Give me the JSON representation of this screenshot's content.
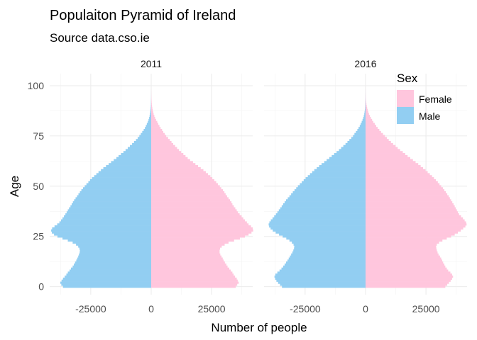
{
  "chart_data": {
    "type": "bar",
    "orientation": "horizontal-pyramid",
    "title": "Populaiton Pyramid of Ireland",
    "subtitle": "Source data.cso.ie",
    "xlabel": "Number of people",
    "ylabel": "Age",
    "xlim": [
      -42000,
      42000
    ],
    "ylim": [
      0,
      100
    ],
    "x_ticks": [
      -25000,
      0,
      25000
    ],
    "x_tick_labels": [
      "-25000",
      "0",
      "25000"
    ],
    "y_ticks": [
      0,
      25,
      50,
      75,
      100
    ],
    "y_tick_labels": [
      "0",
      "25",
      "50",
      "75",
      "100"
    ],
    "grid": true,
    "legend": {
      "title": "Sex",
      "position": "top-right",
      "entries": [
        {
          "label": "Female",
          "color": "#ffc6dd"
        },
        {
          "label": "Male",
          "color": "#92cef2"
        }
      ]
    },
    "colors": {
      "Female": "#ffc6dd",
      "Male": "#92cef2"
    },
    "age_ages": [
      0,
      1,
      2,
      3,
      4,
      5,
      6,
      7,
      8,
      9,
      10,
      11,
      12,
      13,
      14,
      15,
      16,
      17,
      18,
      19,
      20,
      21,
      22,
      23,
      24,
      25,
      26,
      27,
      28,
      29,
      30,
      31,
      32,
      33,
      34,
      35,
      36,
      37,
      38,
      39,
      40,
      41,
      42,
      43,
      44,
      45,
      46,
      47,
      48,
      49,
      50,
      51,
      52,
      53,
      54,
      55,
      56,
      57,
      58,
      59,
      60,
      61,
      62,
      63,
      64,
      65,
      66,
      67,
      68,
      69,
      70,
      71,
      72,
      73,
      74,
      75,
      76,
      77,
      78,
      79,
      80,
      81,
      82,
      83,
      84,
      85,
      86,
      87,
      88,
      89,
      90,
      91,
      92,
      93,
      94,
      95,
      96,
      97,
      98,
      99,
      100
    ],
    "panels": [
      {
        "label": "2011",
        "series": [
          {
            "name": "Female",
            "values": [
              35000,
              35600,
              36200,
              35800,
              35400,
              34700,
              34100,
              33600,
              32900,
              32300,
              31600,
              31100,
              30500,
              30000,
              29600,
              29100,
              28600,
              28300,
              28300,
              28500,
              29200,
              30400,
              32000,
              34300,
              36700,
              38800,
              40300,
              41500,
              42200,
              42000,
              41300,
              40300,
              39600,
              38800,
              38100,
              37400,
              36600,
              35900,
              35400,
              34800,
              34200,
              33600,
              33200,
              32600,
              32000,
              31400,
              30800,
              30300,
              29700,
              29000,
              28400,
              27600,
              26900,
              26100,
              25300,
              24500,
              23500,
              22600,
              21600,
              20500,
              19400,
              18300,
              17300,
              16100,
              15100,
              14200,
              13300,
              12400,
              11500,
              10700,
              9900,
              9100,
              8400,
              7700,
              7000,
              6200,
              5600,
              5000,
              4500,
              3900,
              3400,
              2900,
              2500,
              2000,
              1600,
              1300,
              1000,
              800,
              600,
              450,
              340,
              250,
              180,
              130,
              90,
              60,
              40,
              25,
              15,
              8,
              4
            ]
          },
          {
            "name": "Male",
            "values": [
              -36500,
              -37200,
              -37600,
              -37100,
              -36500,
              -35800,
              -35100,
              -34500,
              -33800,
              -33200,
              -32500,
              -32000,
              -31500,
              -31000,
              -30600,
              -30200,
              -29900,
              -29600,
              -29500,
              -29700,
              -30200,
              -31100,
              -32500,
              -34500,
              -36700,
              -38800,
              -40200,
              -41100,
              -41400,
              -41000,
              -40000,
              -38900,
              -38000,
              -37300,
              -36700,
              -36100,
              -35500,
              -35000,
              -34500,
              -34000,
              -33400,
              -32900,
              -32400,
              -31900,
              -31300,
              -30700,
              -30100,
              -29500,
              -28900,
              -28200,
              -27500,
              -26800,
              -26000,
              -25300,
              -24500,
              -23600,
              -22700,
              -21800,
              -20800,
              -19800,
              -18700,
              -17600,
              -16600,
              -15500,
              -14400,
              -13500,
              -12500,
              -11500,
              -10600,
              -9700,
              -8800,
              -7900,
              -7100,
              -6300,
              -5600,
              -4900,
              -4300,
              -3700,
              -3100,
              -2600,
              -2200,
              -1800,
              -1400,
              -1100,
              -850,
              -650,
              -500,
              -370,
              -270,
              -200,
              -140,
              -100,
              -70,
              -50,
              -32,
              -20,
              -12,
              -7,
              -4,
              -2,
              -1
            ]
          }
        ]
      },
      {
        "label": "2016",
        "series": [
          {
            "name": "Female",
            "values": [
              33000,
              33800,
              34500,
              35200,
              35800,
              36200,
              35800,
              35100,
              34200,
              33600,
              33000,
              32600,
              32100,
              31700,
              31300,
              30800,
              30200,
              29800,
              29500,
              29300,
              29200,
              29500,
              30400,
              31800,
              33600,
              35400,
              36900,
              38200,
              39400,
              40400,
              41300,
              41800,
              41600,
              41000,
              40300,
              39500,
              38700,
              38200,
              37800,
              37300,
              36900,
              36400,
              35900,
              35400,
              34900,
              34400,
              33800,
              33200,
              32600,
              32000,
              31300,
              30600,
              29900,
              29100,
              28300,
              27500,
              26600,
              25700,
              24800,
              23800,
              22800,
              21800,
              20700,
              19600,
              18500,
              17400,
              16400,
              15400,
              14300,
              13300,
              12400,
              11400,
              10500,
              9600,
              8800,
              8000,
              7200,
              6400,
              5700,
              5000,
              4400,
              3800,
              3200,
              2700,
              2200,
              1800,
              1400,
              1100,
              850,
              650,
              480,
              350,
              250,
              170,
              115,
              75,
              48,
              30,
              18,
              10,
              5
            ]
          },
          {
            "name": "Male",
            "values": [
              -34600,
              -35400,
              -36200,
              -36900,
              -37400,
              -37700,
              -37300,
              -36500,
              -35600,
              -34800,
              -34100,
              -33500,
              -32900,
              -32300,
              -31800,
              -31300,
              -30800,
              -30300,
              -29900,
              -29600,
              -29500,
              -29800,
              -30500,
              -31500,
              -32800,
              -34300,
              -35800,
              -37200,
              -38400,
              -39300,
              -39900,
              -40100,
              -39800,
              -39200,
              -38500,
              -37800,
              -37100,
              -36500,
              -35900,
              -35300,
              -34700,
              -34100,
              -33500,
              -32900,
              -32200,
              -31500,
              -30800,
              -30100,
              -29400,
              -28700,
              -28000,
              -27200,
              -26400,
              -25600,
              -24800,
              -23900,
              -23000,
              -22100,
              -21200,
              -20200,
              -19200,
              -18200,
              -17100,
              -16100,
              -15000,
              -14000,
              -13000,
              -12000,
              -11000,
              -10100,
              -9200,
              -8300,
              -7500,
              -6700,
              -5900,
              -5200,
              -4600,
              -4000,
              -3400,
              -2900,
              -2400,
              -2000,
              -1600,
              -1250,
              -950,
              -720,
              -540,
              -400,
              -290,
              -210,
              -150,
              -105,
              -72,
              -50,
              -33,
              -21,
              -13,
              -8,
              -4,
              -2,
              -1
            ]
          }
        ]
      }
    ]
  }
}
